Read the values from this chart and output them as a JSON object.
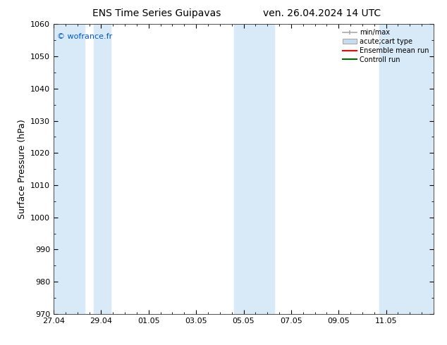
{
  "title_left": "ENS Time Series Guipavas",
  "title_right": "ven. 26.04.2024 14 UTC",
  "ylabel": "Surface Pressure (hPa)",
  "ylim": [
    970,
    1060
  ],
  "yticks": [
    970,
    980,
    990,
    1000,
    1010,
    1020,
    1030,
    1040,
    1050,
    1060
  ],
  "xlim_start": 0,
  "xlim_end": 16,
  "xtick_labels": [
    "27.04",
    "29.04",
    "01.05",
    "03.05",
    "05.05",
    "07.05",
    "09.05",
    "11.05"
  ],
  "xtick_positions": [
    0,
    2,
    4,
    6,
    8,
    10,
    12,
    14
  ],
  "watermark": "© wofrance.fr",
  "watermark_color": "#0055cc",
  "shaded_bands": [
    {
      "xmin": 0.0,
      "xmax": 1.3
    },
    {
      "xmin": 1.7,
      "xmax": 2.4
    },
    {
      "xmin": 7.6,
      "xmax": 9.3
    },
    {
      "xmin": 13.7,
      "xmax": 16.0
    }
  ],
  "band_color": "#d8eaf8",
  "background_color": "#ffffff",
  "legend_items": [
    {
      "label": "min/max",
      "color": "#aaaaaa",
      "style": "errorbar"
    },
    {
      "label": "acute;cart type",
      "color": "#c8dced",
      "style": "box"
    },
    {
      "label": "Ensemble mean run",
      "color": "#ff0000",
      "style": "line"
    },
    {
      "label": "Controll run",
      "color": "#006600",
      "style": "line"
    }
  ],
  "title_fontsize": 10,
  "axis_label_fontsize": 9,
  "tick_fontsize": 8,
  "legend_fontsize": 7,
  "watermark_fontsize": 8
}
